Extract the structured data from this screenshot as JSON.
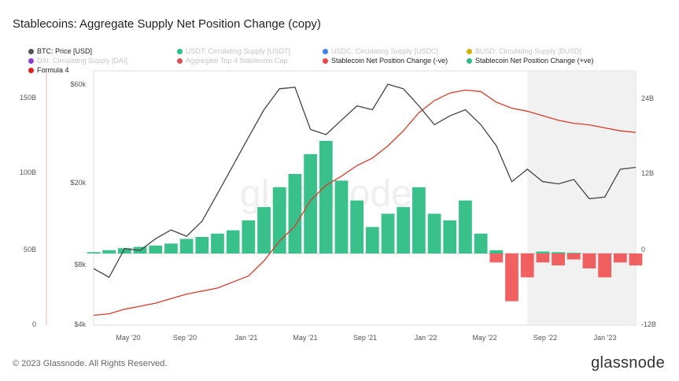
{
  "title": "Stablecoins: Aggregate Supply Net Position Change (copy)",
  "footer": {
    "copyright": "© 2023 Glassnode. All Rights Reserved.",
    "brand": "glassnode"
  },
  "watermark": "glassnode",
  "legend": [
    {
      "label": "BTC: Price [USD]",
      "color": "#555555",
      "faded": false
    },
    {
      "label": "USDT: Circulating Supply [USDT]",
      "color": "#26c281",
      "faded": true
    },
    {
      "label": "USDC: Circulating Supply [USDC]",
      "color": "#3b82f6",
      "faded": true
    },
    {
      "label": "BUSD: Circulating Supply [BUSD]",
      "color": "#d4b106",
      "faded": true
    },
    {
      "label": "DAI: Circulating Supply [DAI]",
      "color": "#8b3fd9",
      "faded": true
    },
    {
      "label": "Aggregate Top 4 Stablecoin Cap",
      "color": "#e05050",
      "faded": true
    },
    {
      "label": "Stablecoin Net Position Change (-ve)",
      "color": "#f04545",
      "faded": false
    },
    {
      "label": "Stablecoin Net Position Change (+ve)",
      "color": "#2ebd85",
      "faded": false
    },
    {
      "label": "Formula 4",
      "color": "#e02020",
      "faded": false
    }
  ],
  "chart_data": {
    "type": "line",
    "x_tick_labels": [
      "May '20",
      "Sep '20",
      "Jan '21",
      "May '21",
      "Sep '21",
      "Jan '22",
      "May '22",
      "Sep '22",
      "Jan '23"
    ],
    "left_axis_ticks": [
      "150B",
      "100B",
      "50B",
      "0"
    ],
    "price_axis_ticks": [
      "$60k",
      "$20k",
      "$8k",
      "$4k"
    ],
    "right_axis_ticks": [
      "24B",
      "12B",
      "0",
      "-12B"
    ],
    "price_scale": "log",
    "price_range": [
      4000,
      60000
    ],
    "net_change_range": [
      -12,
      24
    ],
    "cap_range": [
      0,
      150
    ],
    "months": [
      "2020-03",
      "2020-04",
      "2020-05",
      "2020-06",
      "2020-07",
      "2020-08",
      "2020-09",
      "2020-10",
      "2020-11",
      "2020-12",
      "2021-01",
      "2021-02",
      "2021-03",
      "2021-04",
      "2021-05",
      "2021-06",
      "2021-07",
      "2021-08",
      "2021-09",
      "2021-10",
      "2021-11",
      "2021-12",
      "2022-01",
      "2022-02",
      "2022-03",
      "2022-04",
      "2022-05",
      "2022-06",
      "2022-07",
      "2022-08",
      "2022-09",
      "2022-10",
      "2022-11",
      "2022-12",
      "2023-01",
      "2023-02"
    ],
    "series": [
      {
        "name": "BTC: Price [USD]",
        "axis": "price",
        "color": "#444444",
        "values": [
          7500,
          6800,
          9400,
          9200,
          10500,
          11600,
          10800,
          12800,
          17500,
          24000,
          33000,
          45000,
          57000,
          58000,
          36000,
          34000,
          40000,
          47000,
          45000,
          60000,
          57000,
          47000,
          38000,
          42000,
          45000,
          38000,
          30000,
          20000,
          23000,
          20000,
          19500,
          20500,
          16500,
          16800,
          23000,
          23500
        ]
      },
      {
        "name": "Aggregate Top 4 Stablecoin Cap",
        "axis": "cap",
        "color": "#d83b2b",
        "values": [
          6,
          7,
          10,
          12,
          14,
          17,
          20,
          22,
          24,
          28,
          32,
          42,
          55,
          65,
          82,
          92,
          98,
          105,
          110,
          118,
          128,
          140,
          148,
          153,
          155,
          154,
          147,
          143,
          141,
          138,
          135,
          133,
          132,
          130,
          128,
          127
        ]
      },
      {
        "name": "Stablecoin Net Position Change (+ve)",
        "axis": "net",
        "color": "#2ebd85",
        "values": [
          0.2,
          0.5,
          0.8,
          1.0,
          1.2,
          1.5,
          2.2,
          2.5,
          3.0,
          3.5,
          5.0,
          7.0,
          10.0,
          12.0,
          15.0,
          17.0,
          11.0,
          8.0,
          4.0,
          6.0,
          7.0,
          10.0,
          6.0,
          5.0,
          8.0,
          3.0,
          0.5,
          0,
          0,
          0.3,
          0.2,
          0.1,
          0,
          0,
          0,
          0
        ]
      },
      {
        "name": "Stablecoin Net Position Change (-ve)",
        "axis": "net",
        "color": "#f04545",
        "values": [
          0,
          0,
          0,
          0,
          0,
          0,
          0,
          0,
          0,
          0,
          0,
          0,
          0,
          0,
          0,
          0,
          0,
          0,
          0,
          0,
          0,
          0,
          0,
          0,
          0,
          0,
          -1.5,
          -8.0,
          -4.0,
          -1.5,
          -2.0,
          -1.0,
          -2.5,
          -4.0,
          -1.5,
          -2.0
        ]
      }
    ]
  }
}
